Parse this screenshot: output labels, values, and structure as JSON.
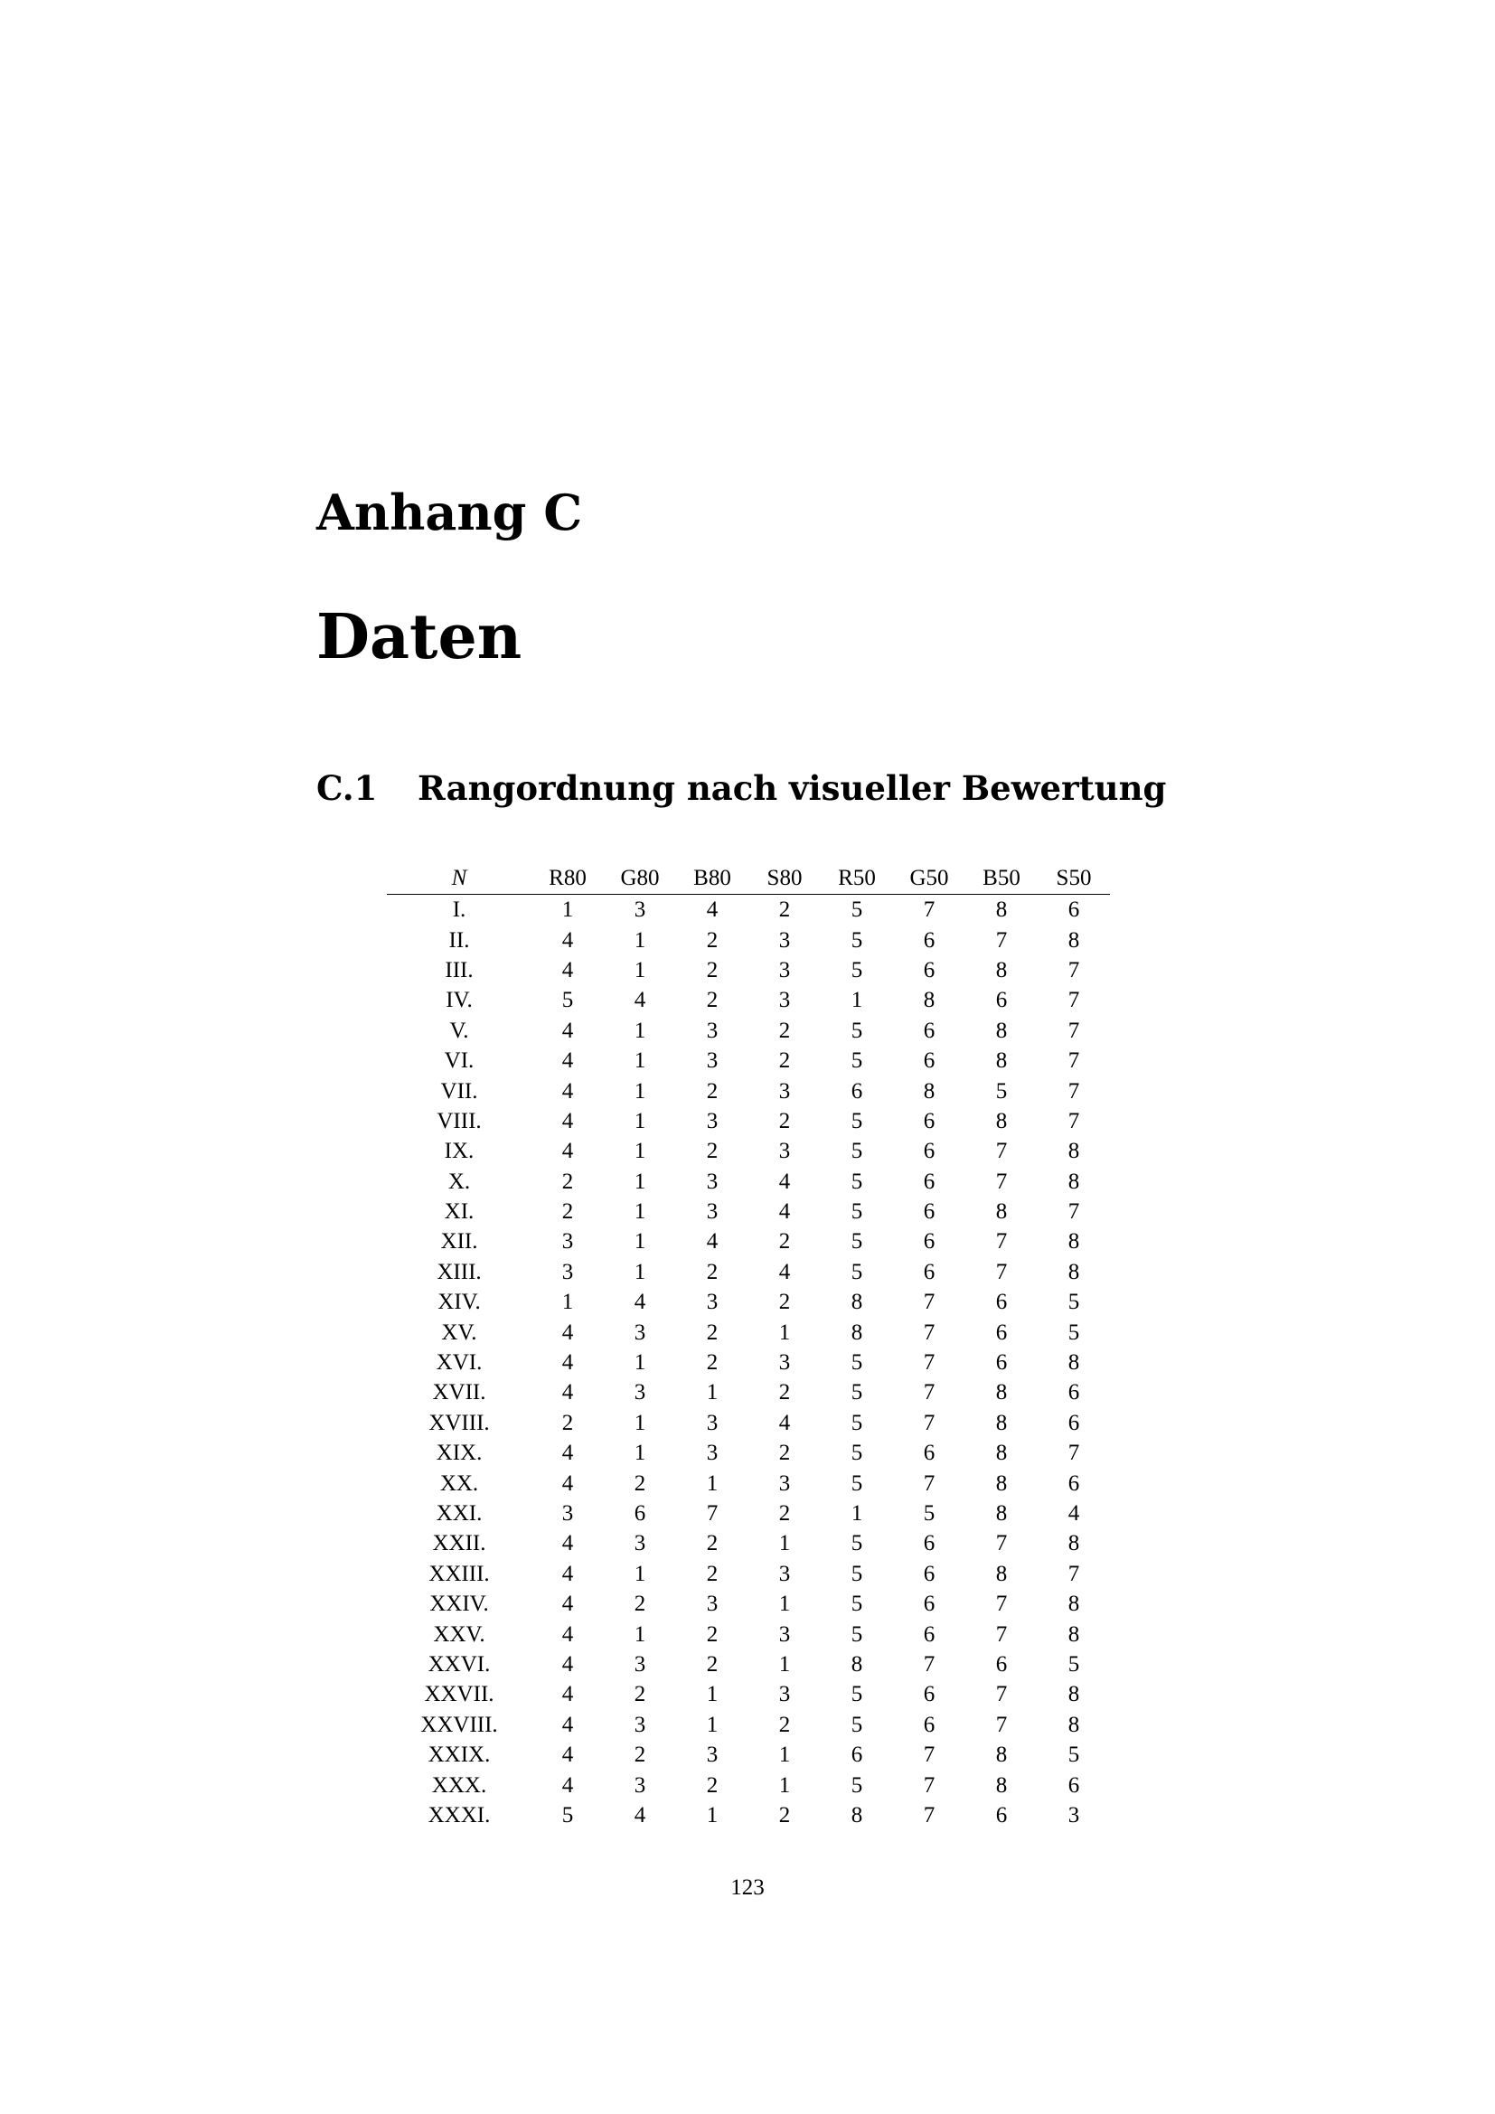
{
  "chapter": {
    "label": "Anhang C",
    "title": "Daten"
  },
  "section": {
    "number": "C.1",
    "title": "Rangordnung nach visueller Bewertung"
  },
  "table": {
    "headers": [
      "N",
      "R80",
      "G80",
      "B80",
      "S80",
      "R50",
      "G50",
      "B50",
      "S50"
    ],
    "rows": [
      [
        "I.",
        "1",
        "3",
        "4",
        "2",
        "5",
        "7",
        "8",
        "6"
      ],
      [
        "II.",
        "4",
        "1",
        "2",
        "3",
        "5",
        "6",
        "7",
        "8"
      ],
      [
        "III.",
        "4",
        "1",
        "2",
        "3",
        "5",
        "6",
        "8",
        "7"
      ],
      [
        "IV.",
        "5",
        "4",
        "2",
        "3",
        "1",
        "8",
        "6",
        "7"
      ],
      [
        "V.",
        "4",
        "1",
        "3",
        "2",
        "5",
        "6",
        "8",
        "7"
      ],
      [
        "VI.",
        "4",
        "1",
        "3",
        "2",
        "5",
        "6",
        "8",
        "7"
      ],
      [
        "VII.",
        "4",
        "1",
        "2",
        "3",
        "6",
        "8",
        "5",
        "7"
      ],
      [
        "VIII.",
        "4",
        "1",
        "3",
        "2",
        "5",
        "6",
        "8",
        "7"
      ],
      [
        "IX.",
        "4",
        "1",
        "2",
        "3",
        "5",
        "6",
        "7",
        "8"
      ],
      [
        "X.",
        "2",
        "1",
        "3",
        "4",
        "5",
        "6",
        "7",
        "8"
      ],
      [
        "XI.",
        "2",
        "1",
        "3",
        "4",
        "5",
        "6",
        "8",
        "7"
      ],
      [
        "XII.",
        "3",
        "1",
        "4",
        "2",
        "5",
        "6",
        "7",
        "8"
      ],
      [
        "XIII.",
        "3",
        "1",
        "2",
        "4",
        "5",
        "6",
        "7",
        "8"
      ],
      [
        "XIV.",
        "1",
        "4",
        "3",
        "2",
        "8",
        "7",
        "6",
        "5"
      ],
      [
        "XV.",
        "4",
        "3",
        "2",
        "1",
        "8",
        "7",
        "6",
        "5"
      ],
      [
        "XVI.",
        "4",
        "1",
        "2",
        "3",
        "5",
        "7",
        "6",
        "8"
      ],
      [
        "XVII.",
        "4",
        "3",
        "1",
        "2",
        "5",
        "7",
        "8",
        "6"
      ],
      [
        "XVIII.",
        "2",
        "1",
        "3",
        "4",
        "5",
        "7",
        "8",
        "6"
      ],
      [
        "XIX.",
        "4",
        "1",
        "3",
        "2",
        "5",
        "6",
        "8",
        "7"
      ],
      [
        "XX.",
        "4",
        "2",
        "1",
        "3",
        "5",
        "7",
        "8",
        "6"
      ],
      [
        "XXI.",
        "3",
        "6",
        "7",
        "2",
        "1",
        "5",
        "8",
        "4"
      ],
      [
        "XXII.",
        "4",
        "3",
        "2",
        "1",
        "5",
        "6",
        "7",
        "8"
      ],
      [
        "XXIII.",
        "4",
        "1",
        "2",
        "3",
        "5",
        "6",
        "8",
        "7"
      ],
      [
        "XXIV.",
        "4",
        "2",
        "3",
        "1",
        "5",
        "6",
        "7",
        "8"
      ],
      [
        "XXV.",
        "4",
        "1",
        "2",
        "3",
        "5",
        "6",
        "7",
        "8"
      ],
      [
        "XXVI.",
        "4",
        "3",
        "2",
        "1",
        "8",
        "7",
        "6",
        "5"
      ],
      [
        "XXVII.",
        "4",
        "2",
        "1",
        "3",
        "5",
        "6",
        "7",
        "8"
      ],
      [
        "XXVIII.",
        "4",
        "3",
        "1",
        "2",
        "5",
        "6",
        "7",
        "8"
      ],
      [
        "XXIX.",
        "4",
        "2",
        "3",
        "1",
        "6",
        "7",
        "8",
        "5"
      ],
      [
        "XXX.",
        "4",
        "3",
        "2",
        "1",
        "5",
        "7",
        "8",
        "6"
      ],
      [
        "XXXI.",
        "5",
        "4",
        "1",
        "2",
        "8",
        "7",
        "6",
        "3"
      ]
    ]
  },
  "page_number": "123"
}
